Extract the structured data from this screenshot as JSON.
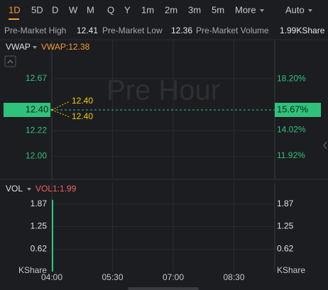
{
  "toolbar": {
    "periods": [
      "1D",
      "5D",
      "D",
      "W",
      "M",
      "Q",
      "Y",
      "1m",
      "2m",
      "3m",
      "5m"
    ],
    "active": "1D",
    "more": "More",
    "mode": "Auto"
  },
  "stats": [
    {
      "label": "Pre-Market High",
      "value": "12.41"
    },
    {
      "label": "Pre-Market Low",
      "value": "12.36"
    },
    {
      "label": "Pre-Market Volume",
      "value": "1.99KShare"
    }
  ],
  "watermark": "Pre Hour",
  "xticks": [
    "04:00",
    "05:30",
    "07:00",
    "08:30"
  ],
  "chart_data": [
    {
      "type": "line",
      "indicator": "VWAP",
      "legend": "VWAP:12.38",
      "color": "#2fc27a",
      "values": [
        12.4
      ],
      "ylim": [
        11.8,
        13.0
      ],
      "yticks": [
        {
          "value": 12.0,
          "label": "12.00"
        },
        {
          "value": 12.22,
          "label": "12.22"
        },
        {
          "value": 12.67,
          "label": "12.67"
        }
      ],
      "y2lim": [
        10.0,
        21.34
      ],
      "y2ticks": [
        {
          "value": 11.92,
          "label": "11.92%"
        },
        {
          "value": 14.02,
          "label": "14.02%"
        },
        {
          "value": 18.2,
          "label": "18.20%"
        }
      ],
      "high_low": {
        "values": [
          12.4,
          12.4
        ],
        "value_labels": [
          "12.40",
          "12.40"
        ]
      },
      "price_tag": {
        "value": 12.4,
        "label": "12.40",
        "y2_label": "15.67%"
      },
      "grid": true
    },
    {
      "type": "bar",
      "indicator": "VOL",
      "legend": "VOL1:1.99",
      "color": "#2fc27a",
      "values": [
        1.99
      ],
      "ylim": [
        0,
        2.46
      ],
      "yticks": [
        0.62,
        1.25,
        1.87
      ],
      "unit": "KShare",
      "grid": true
    }
  ]
}
